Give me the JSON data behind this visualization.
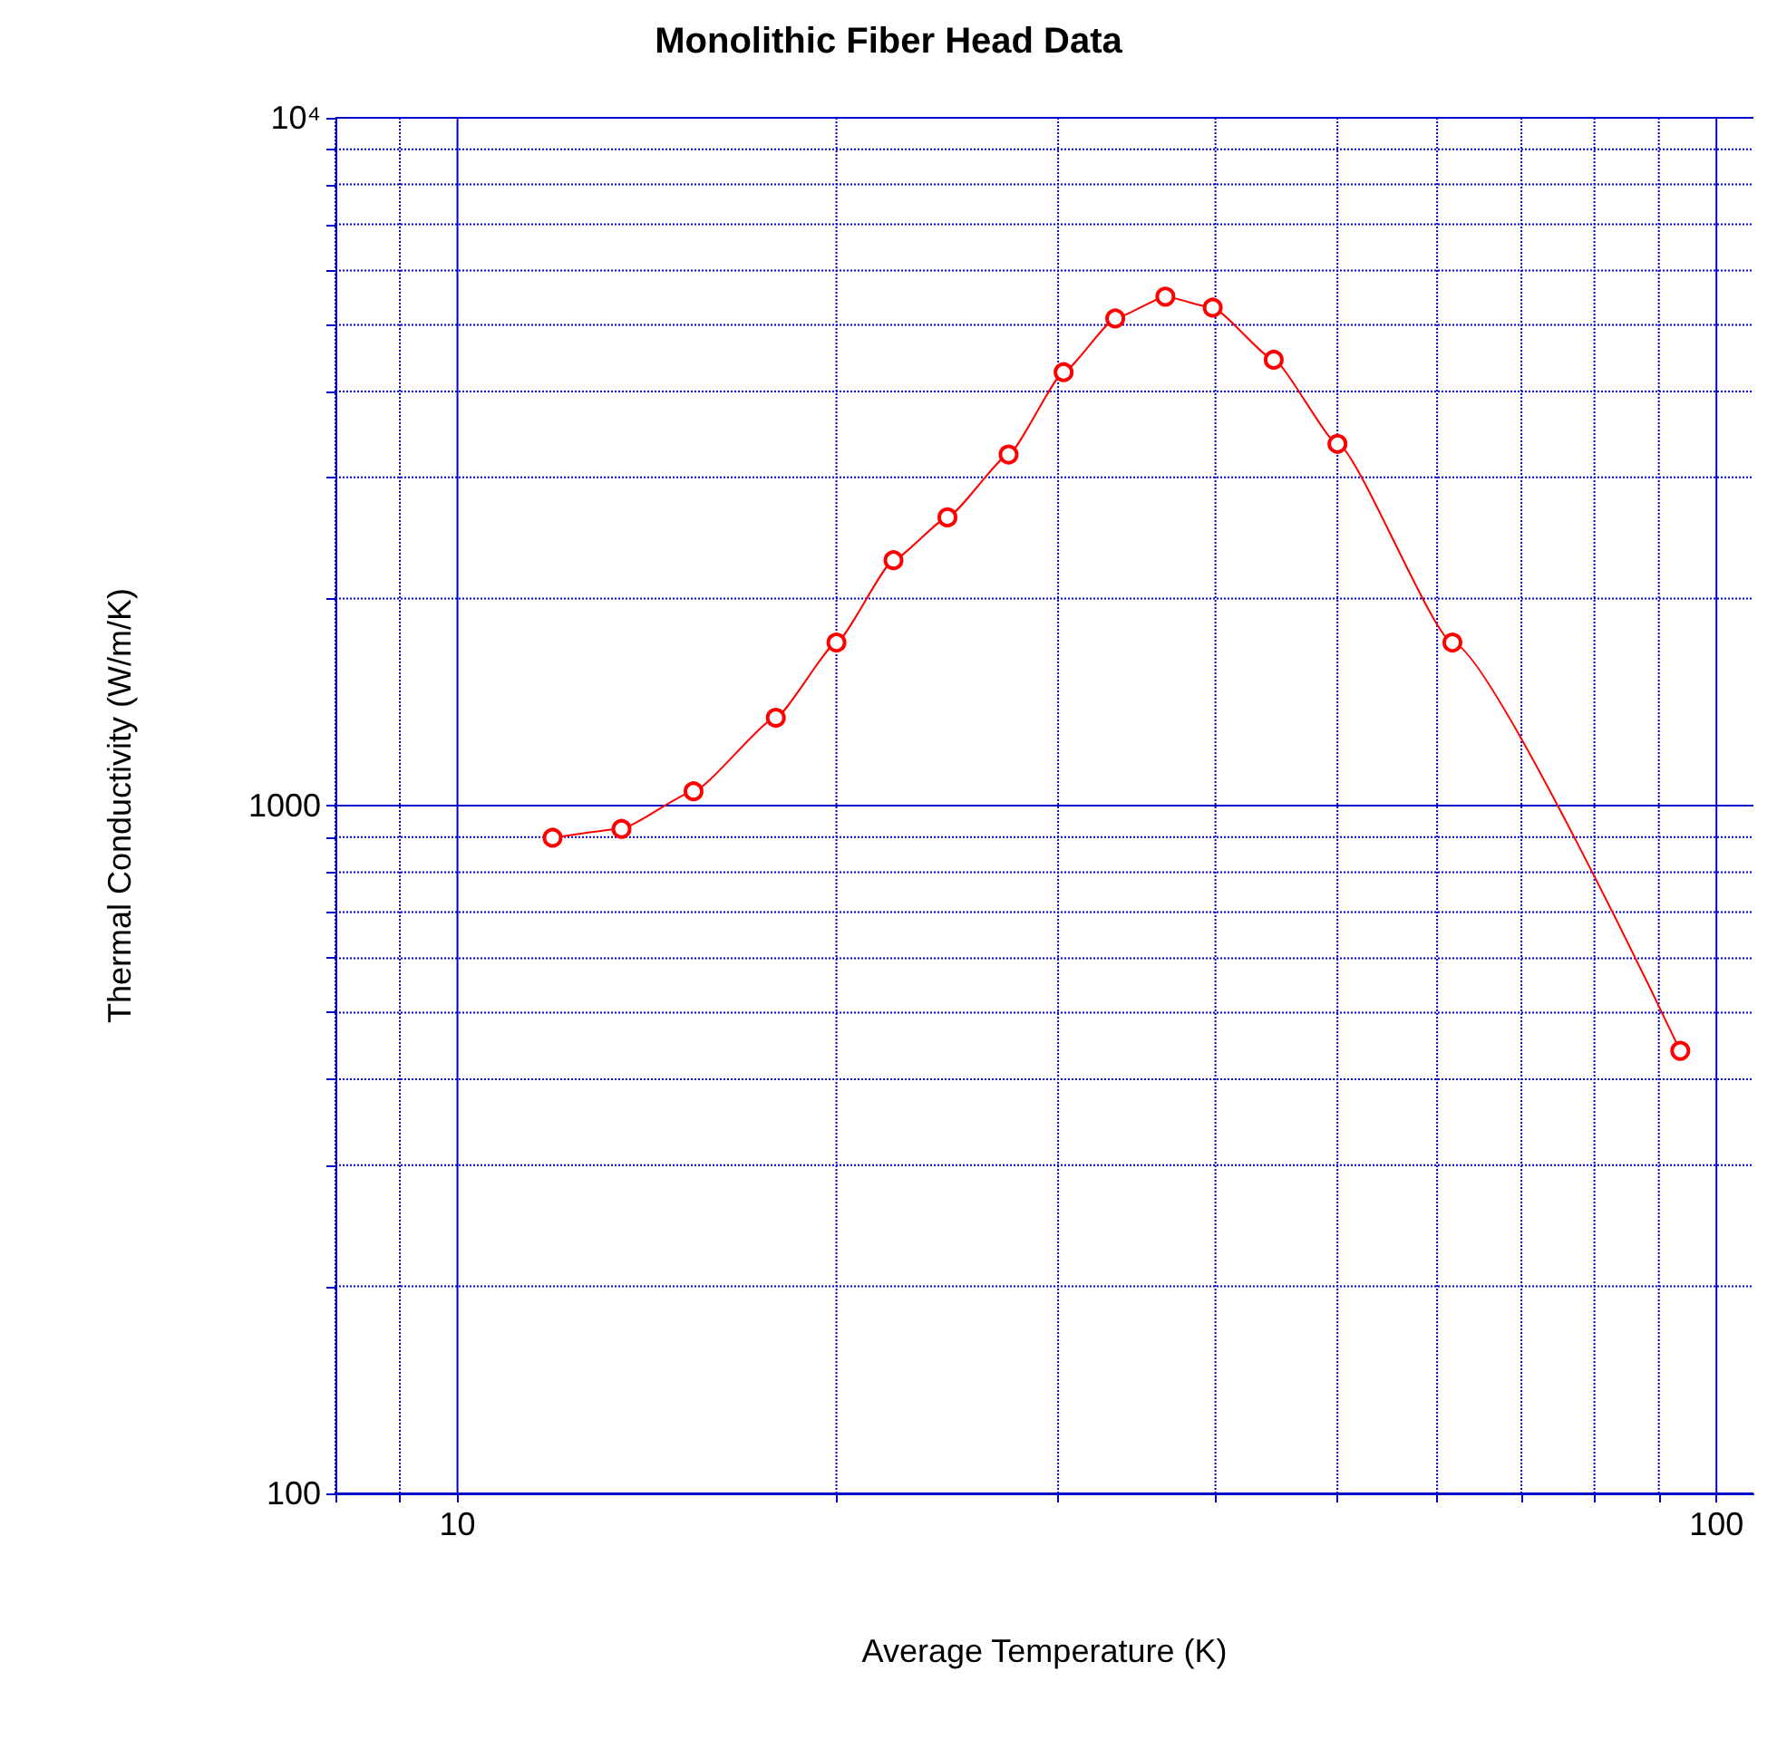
{
  "chart_data": {
    "type": "line",
    "title": "Monolithic Fiber Head Data",
    "xlabel": "Average Temperature (K)",
    "ylabel": "Thermal Conductivity (W/m/K)",
    "x": [
      11.9,
      13.5,
      15.4,
      17.9,
      20,
      22.2,
      24.5,
      27.4,
      30.3,
      33.3,
      36.5,
      39.8,
      44.5,
      50,
      61.7,
      93.6
    ],
    "series": [
      {
        "color": "#ff0000",
        "values": [
          898,
          925,
          1049,
          1342,
          1726,
          2274,
          2625,
          3239,
          4267,
          5108,
          5495,
          5297,
          4449,
          3357,
          1726,
          440
        ]
      }
    ],
    "log": "xy",
    "xlim": [
      8,
      107
    ],
    "ylim": [
      100,
      10000
    ],
    "xticks": [
      {
        "value": 8,
        "label": null
      },
      {
        "value": 9,
        "label": null
      },
      10,
      {
        "value": 20,
        "label": null
      },
      {
        "value": 30,
        "label": null
      },
      {
        "value": 40,
        "label": null
      },
      {
        "value": 50,
        "label": null
      },
      {
        "value": 60,
        "label": null
      },
      {
        "value": 70,
        "label": null
      },
      {
        "value": 80,
        "label": null
      },
      {
        "value": 90,
        "label": null
      },
      100
    ],
    "yticks": [
      100,
      {
        "value": 200,
        "label": null
      },
      {
        "value": 300,
        "label": null
      },
      {
        "value": 400,
        "label": null
      },
      {
        "value": 500,
        "label": null
      },
      {
        "value": 600,
        "label": null
      },
      {
        "value": 700,
        "label": null
      },
      {
        "value": 800,
        "label": null
      },
      {
        "value": 900,
        "label": null
      },
      1000,
      {
        "value": 2000,
        "label": null
      },
      {
        "value": 3000,
        "label": null
      },
      {
        "value": 4000,
        "label": null
      },
      {
        "value": 5000,
        "label": null
      },
      {
        "value": 6000,
        "label": null
      },
      {
        "value": 7000,
        "label": null
      },
      {
        "value": 8000,
        "label": null
      },
      {
        "value": 9000,
        "label": null
      },
      {
        "value": 10000,
        "label": "10⁴"
      }
    ],
    "grid": true,
    "marker": "circle",
    "line_style": "solid"
  }
}
